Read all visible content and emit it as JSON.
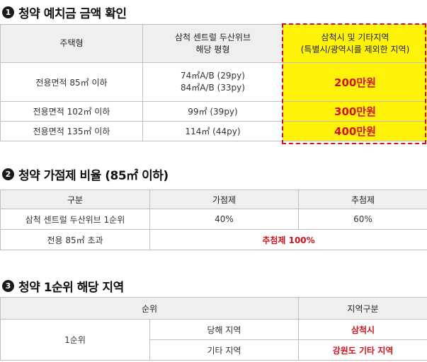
{
  "section1": {
    "num": "1",
    "title": "청약 예치금 금액 확인",
    "headers": {
      "type": "주택형",
      "pyeong_line1": "삼척 센트럴 두산위브",
      "pyeong_line2": "해당 평형",
      "deposit_line1": "삼척시 및 기타지역",
      "deposit_line2": "(특별시/광역시를 제외한 지역)"
    },
    "rows": [
      {
        "type": "전용면적 85㎡ 이하",
        "pyeong_line1": "74㎡A/B (29py)",
        "pyeong_line2": "84㎡A/B (33py)",
        "deposit": "200만원"
      },
      {
        "type": "전용면적 102㎡ 이하",
        "pyeong_line1": "99㎡ (39py)",
        "pyeong_line2": "",
        "deposit": "300만원"
      },
      {
        "type": "전용면적 135㎡ 이하",
        "pyeong_line1": "114㎡ (44py)",
        "pyeong_line2": "",
        "deposit": "400만원"
      }
    ]
  },
  "section2": {
    "num": "2",
    "title": "청약 가점제 비율 (85㎡ 이하)",
    "headers": {
      "category": "구분",
      "gajeom": "가점제",
      "chucheom": "추첨제"
    },
    "row1": {
      "category": "삼척 센트럴 두산위브 1순위",
      "gajeom": "40%",
      "chucheom": "60%"
    },
    "row2": {
      "category": "전용 85㎡ 초과",
      "merged": "추첨제 100%"
    }
  },
  "section3": {
    "num": "3",
    "title": "청약 1순위 해당 지역",
    "headers": {
      "rank": "순위",
      "region": "지역구분"
    },
    "rank_label": "1순위",
    "rows": [
      {
        "area": "당해 지역",
        "region": "삼척시"
      },
      {
        "area": "기타 지역",
        "region": "강원도 기타 지역"
      }
    ]
  },
  "colors": {
    "accent_red": "#d0131c",
    "highlight_yellow": "#fff20a",
    "header_gray": "#efefef"
  }
}
